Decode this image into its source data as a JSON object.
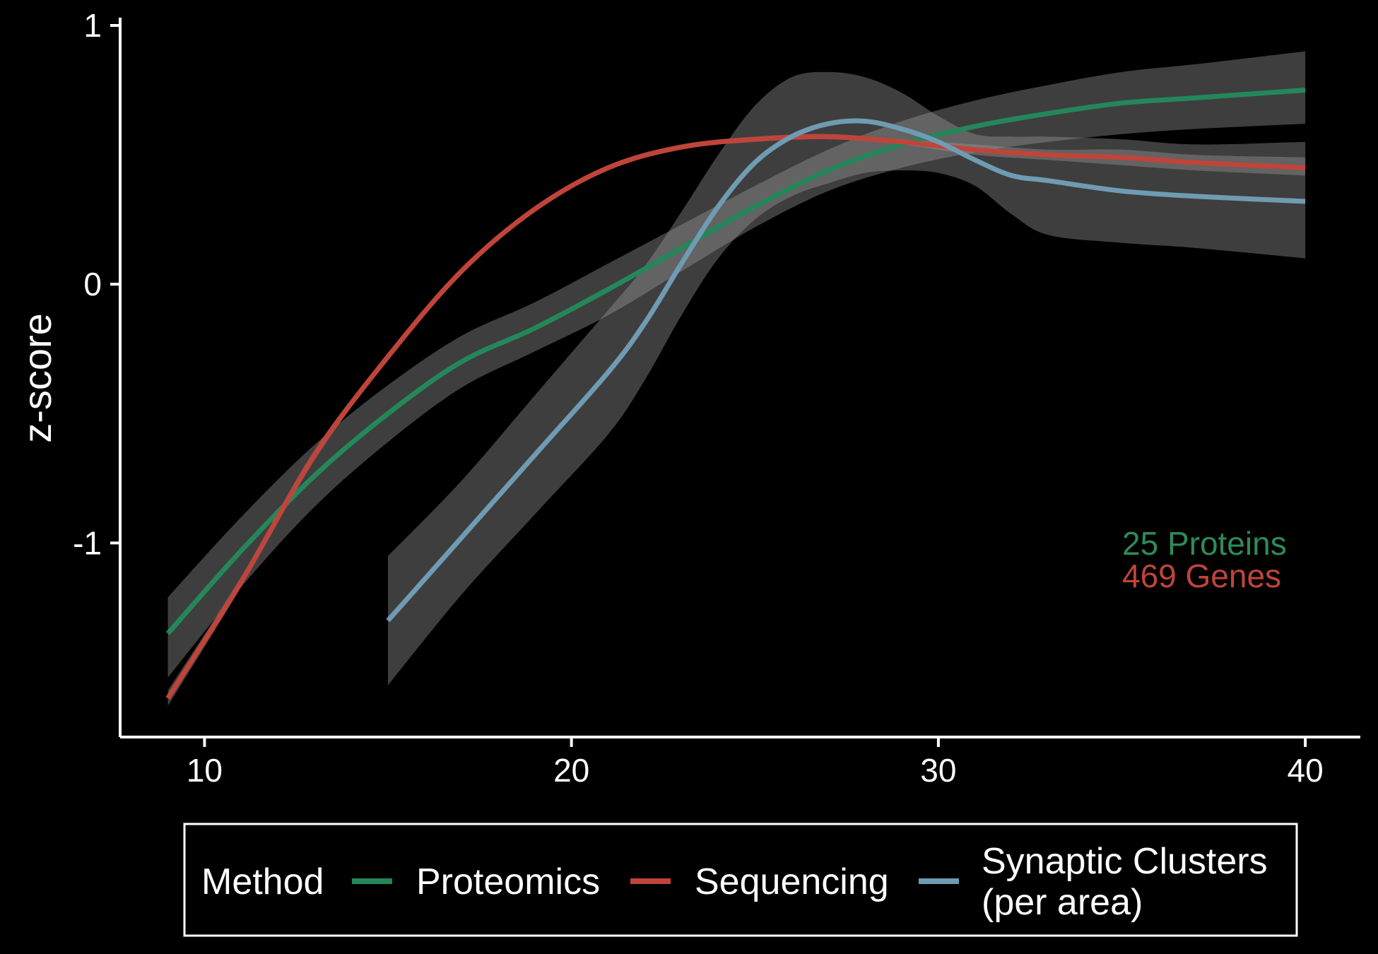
{
  "chart_data": {
    "type": "line",
    "ylabel": "z-score",
    "xlabel": "",
    "xlim": [
      7.7,
      41.5
    ],
    "ylim": [
      -1.75,
      1.03
    ],
    "x_ticks": [
      10,
      20,
      30,
      40
    ],
    "x_tick_labels": [
      "10",
      "20",
      "30",
      "40"
    ],
    "y_ticks": [
      1,
      0,
      -1
    ],
    "y_tick_labels": [
      "1",
      "0",
      "-1"
    ],
    "grid": false,
    "legend": {
      "title": "Method",
      "placement": "bottom",
      "entries": [
        "Proteomics",
        "Sequencing",
        "Synaptic Clusters",
        "(per area)"
      ]
    },
    "annotations": [
      {
        "text": "25 Proteins",
        "color": "#2e8b57"
      },
      {
        "text": "469 Genes",
        "color": "#c0443a"
      }
    ],
    "series": [
      {
        "name": "Proteomics",
        "color": "#24875a",
        "x": [
          9,
          11,
          13,
          15,
          17,
          19,
          21,
          23,
          25,
          27,
          29,
          31,
          33,
          35,
          37,
          40
        ],
        "y": [
          -1.35,
          -1.03,
          -0.74,
          -0.5,
          -0.3,
          -0.17,
          -0.02,
          0.14,
          0.3,
          0.44,
          0.54,
          0.61,
          0.66,
          0.7,
          0.72,
          0.75
        ],
        "ci_lower": [
          -1.52,
          -1.17,
          -0.86,
          -0.61,
          -0.4,
          -0.26,
          -0.12,
          0.05,
          0.22,
          0.36,
          0.45,
          0.51,
          0.55,
          0.58,
          0.6,
          0.62
        ],
        "ci_upper": [
          -1.21,
          -0.9,
          -0.62,
          -0.39,
          -0.2,
          -0.07,
          0.08,
          0.23,
          0.38,
          0.52,
          0.63,
          0.71,
          0.77,
          0.82,
          0.85,
          0.9
        ]
      },
      {
        "name": "Sequencing",
        "color": "#c0443a",
        "x": [
          9,
          11,
          13,
          15,
          17,
          19,
          21,
          23,
          25,
          27,
          29,
          31,
          33,
          35,
          37,
          40
        ],
        "y": [
          -1.6,
          -1.15,
          -0.66,
          -0.28,
          0.05,
          0.29,
          0.45,
          0.53,
          0.56,
          0.57,
          0.55,
          0.52,
          0.5,
          0.49,
          0.47,
          0.45
        ],
        "ci_lower": [
          -1.63,
          -1.17,
          -0.68,
          -0.29,
          0.04,
          0.28,
          0.44,
          0.52,
          0.55,
          0.56,
          0.54,
          0.5,
          0.48,
          0.46,
          0.44,
          0.42
        ],
        "ci_upper": [
          -1.57,
          -1.13,
          -0.64,
          -0.27,
          0.06,
          0.3,
          0.46,
          0.54,
          0.57,
          0.58,
          0.56,
          0.54,
          0.52,
          0.52,
          0.5,
          0.49
        ]
      },
      {
        "name": "Synaptic Clusters (per area)",
        "color": "#6f9bb3",
        "x": [
          15,
          17,
          19,
          21,
          22,
          23,
          24,
          25,
          26,
          27,
          28,
          29,
          30,
          31,
          32,
          33,
          35,
          37,
          40
        ],
        "y": [
          -1.3,
          -0.98,
          -0.66,
          -0.34,
          -0.15,
          0.08,
          0.3,
          0.47,
          0.57,
          0.62,
          0.63,
          0.6,
          0.55,
          0.48,
          0.42,
          0.4,
          0.36,
          0.34,
          0.32
        ],
        "ci_lower": [
          -1.55,
          -1.2,
          -0.89,
          -0.58,
          -0.37,
          -0.12,
          0.1,
          0.25,
          0.34,
          0.39,
          0.43,
          0.44,
          0.43,
          0.38,
          0.27,
          0.19,
          0.16,
          0.14,
          0.1
        ],
        "ci_upper": [
          -1.05,
          -0.76,
          -0.43,
          -0.1,
          0.07,
          0.28,
          0.5,
          0.69,
          0.8,
          0.82,
          0.8,
          0.74,
          0.65,
          0.58,
          0.57,
          0.57,
          0.56,
          0.54,
          0.55
        ]
      }
    ]
  }
}
